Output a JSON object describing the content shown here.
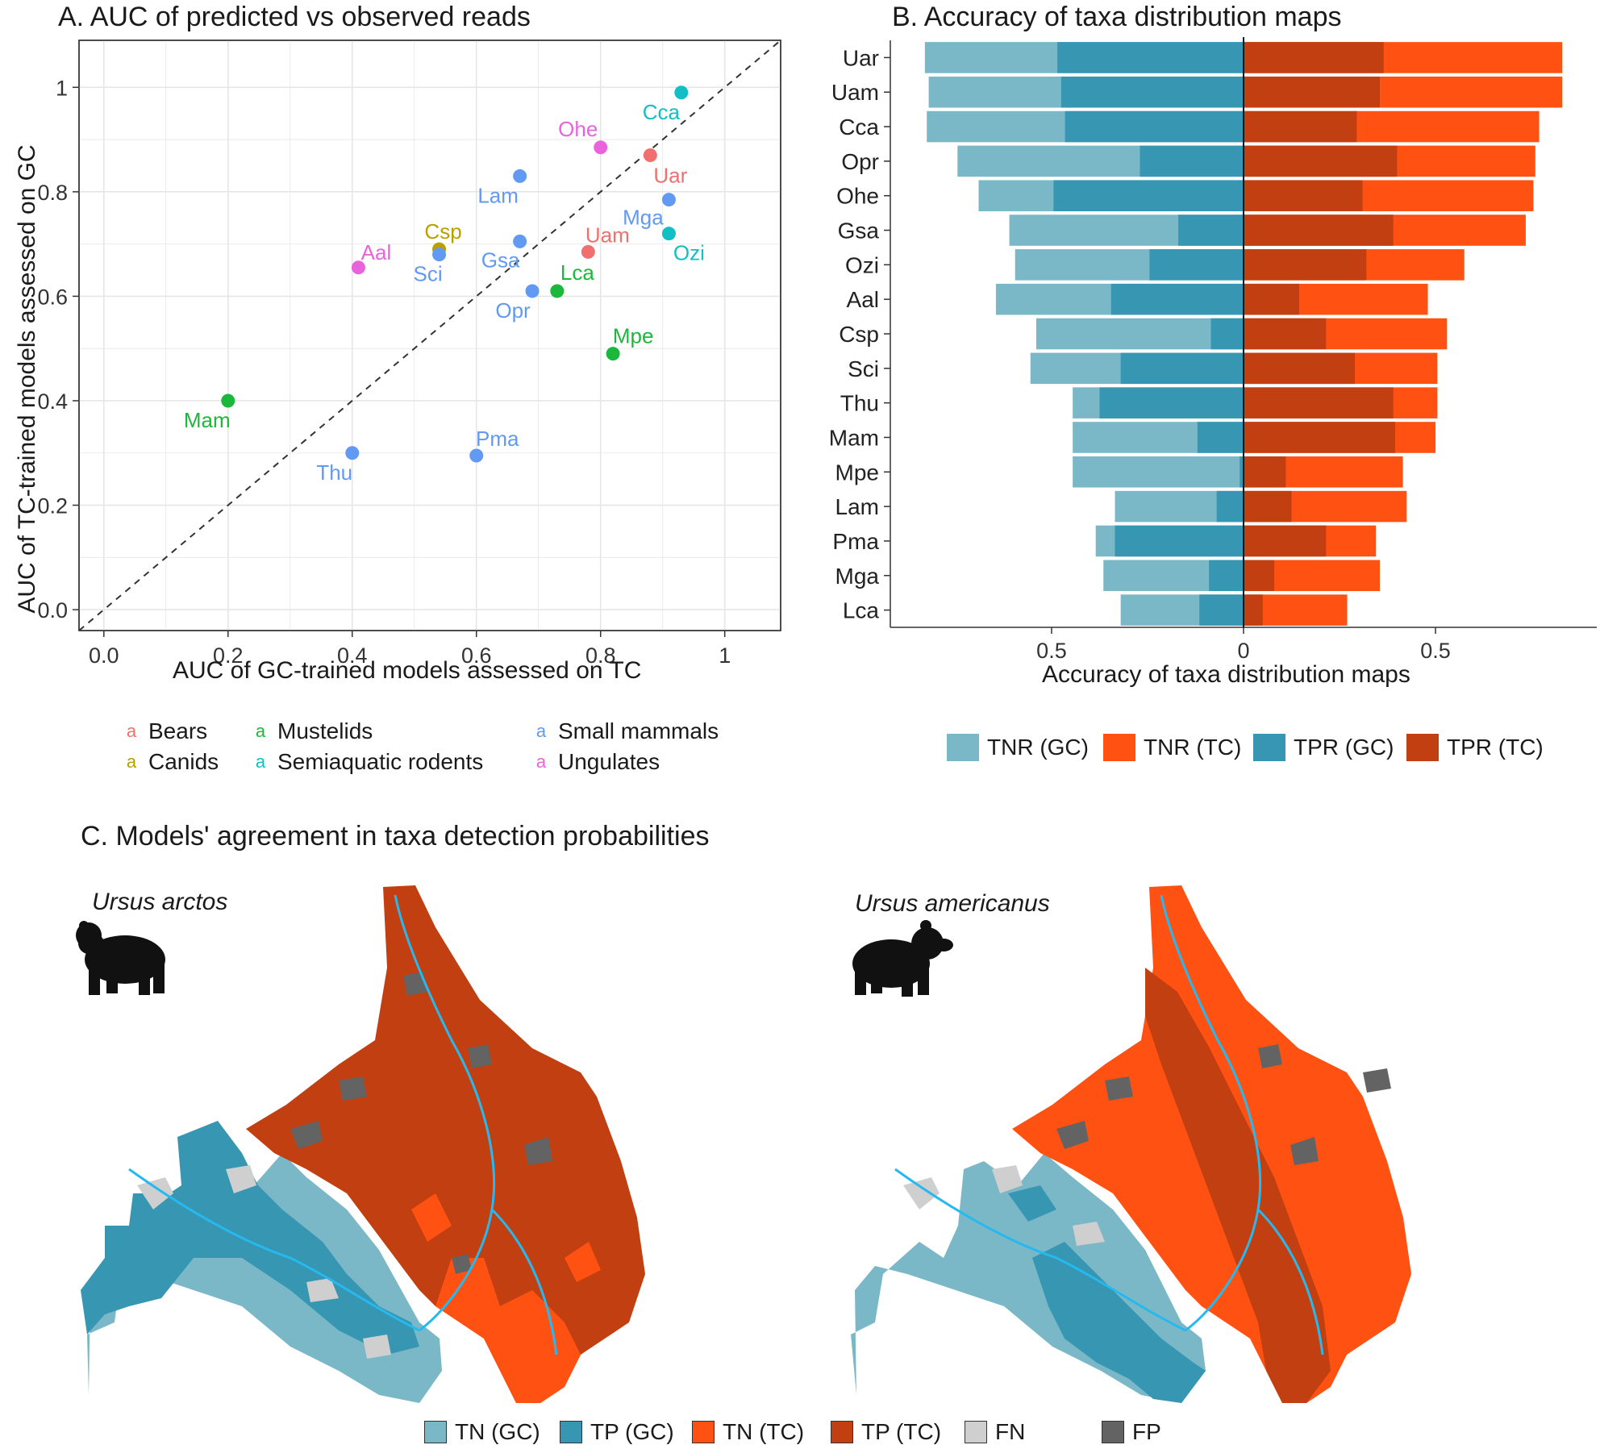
{
  "colors": {
    "bears": "#F07070",
    "canids": "#B7A000",
    "mustelids": "#1CB83C",
    "semiaquatic": "#11BFC4",
    "small_mammals": "#6299F2",
    "ungulates": "#E964DC",
    "tnr_gc": "#7AB8C8",
    "tpr_gc": "#3796B1",
    "tnr_tc": "#FF5212",
    "tpr_tc": "#C23F11",
    "fn": "#CFCFCF",
    "fp": "#636363",
    "river": "#26B9F0"
  },
  "panel_a": {
    "title": "A. AUC of predicted vs observed reads",
    "xlabel": "AUC of GC-trained models assessed on TC",
    "ylabel": "AUC of TC-trained models assessed on GC"
  },
  "panel_b": {
    "title": "B. Accuracy of taxa distribution maps",
    "xlabel": "Accuracy of taxa distribution maps"
  },
  "panel_c": {
    "title": "C. Models' agreement in taxa detection probabilities",
    "map1_label": "Ursus arctos",
    "map2_label": "Ursus americanus"
  },
  "legend_a": {
    "key": "a",
    "items": [
      "Bears",
      "Canids",
      "Mustelids",
      "Semiaquatic rodents",
      "Small mammals",
      "Ungulates"
    ]
  },
  "legend_b": [
    "TNR (GC)",
    "TNR (TC)",
    "TPR (GC)",
    "TPR (TC)"
  ],
  "legend_c": [
    "TN (GC)",
    "TP (GC)",
    "TN (TC)",
    "TP (TC)",
    "FN",
    "FP"
  ],
  "chart_data": [
    {
      "type": "scatter",
      "title": "A. AUC of predicted vs observed reads",
      "xlabel": "AUC of GC-trained models assessed on TC",
      "ylabel": "AUC of TC-trained models assessed on GC",
      "xlim": [
        -0.04,
        1.09
      ],
      "ylim": [
        -0.04,
        1.09
      ],
      "x_ticks": [
        "0.0",
        "0.2",
        "0.4",
        "0.6",
        "0.8",
        "1"
      ],
      "y_ticks": [
        "0.0",
        "0.2",
        "0.4",
        "0.6",
        "0.8",
        "1"
      ],
      "reference_line": "y = x (dashed)",
      "grid": true,
      "points": [
        {
          "label": "Cca",
          "group": "semiaquatic",
          "x": 0.93,
          "y": 0.99
        },
        {
          "label": "Ohe",
          "group": "ungulates",
          "x": 0.8,
          "y": 0.885
        },
        {
          "label": "Uar",
          "group": "bears",
          "x": 0.88,
          "y": 0.87
        },
        {
          "label": "Lam",
          "group": "small_mammals",
          "x": 0.67,
          "y": 0.83
        },
        {
          "label": "Mga",
          "group": "small_mammals",
          "x": 0.91,
          "y": 0.785
        },
        {
          "label": "Ozi",
          "group": "semiaquatic",
          "x": 0.91,
          "y": 0.72
        },
        {
          "label": "Csp",
          "group": "canids",
          "x": 0.54,
          "y": 0.69
        },
        {
          "label": "Sci",
          "group": "small_mammals",
          "x": 0.54,
          "y": 0.68
        },
        {
          "label": "Gsa",
          "group": "small_mammals",
          "x": 0.67,
          "y": 0.705
        },
        {
          "label": "Uam",
          "group": "bears",
          "x": 0.78,
          "y": 0.685
        },
        {
          "label": "Aal",
          "group": "ungulates",
          "x": 0.41,
          "y": 0.655
        },
        {
          "label": "Lca",
          "group": "mustelids",
          "x": 0.73,
          "y": 0.61
        },
        {
          "label": "Opr",
          "group": "small_mammals",
          "x": 0.69,
          "y": 0.61
        },
        {
          "label": "Mpe",
          "group": "mustelids",
          "x": 0.82,
          "y": 0.49
        },
        {
          "label": "Mam",
          "group": "mustelids",
          "x": 0.2,
          "y": 0.4
        },
        {
          "label": "Thu",
          "group": "small_mammals",
          "x": 0.4,
          "y": 0.3
        },
        {
          "label": "Pma",
          "group": "small_mammals",
          "x": 0.6,
          "y": 0.295
        }
      ]
    },
    {
      "type": "bar",
      "orientation": "horizontal-diverging",
      "title": "B. Accuracy of taxa distribution maps",
      "xlabel": "Accuracy of taxa distribution maps",
      "xlim": [
        -0.92,
        0.92
      ],
      "x_ticks": [
        {
          "value": -0.5,
          "label": "0.5"
        },
        {
          "value": 0,
          "label": "0"
        },
        {
          "value": 0.5,
          "label": "0.5"
        }
      ],
      "categories": [
        "Uar",
        "Uam",
        "Cca",
        "Opr",
        "Ohe",
        "Gsa",
        "Ozi",
        "Aal",
        "Csp",
        "Sci",
        "Thu",
        "Mam",
        "Mpe",
        "Lam",
        "Pma",
        "Mga",
        "Lca"
      ],
      "series": [
        {
          "name": "TNR (GC)",
          "side": "left",
          "values": [
            0.83,
            0.82,
            0.825,
            0.745,
            0.69,
            0.61,
            0.595,
            0.645,
            0.54,
            0.555,
            0.445,
            0.445,
            0.445,
            0.335,
            0.385,
            0.365,
            0.32
          ]
        },
        {
          "name": "TPR (GC)",
          "side": "left",
          "values": [
            0.485,
            0.475,
            0.465,
            0.27,
            0.495,
            0.17,
            0.245,
            0.345,
            0.085,
            0.32,
            0.375,
            0.12,
            0.01,
            0.07,
            0.335,
            0.09,
            0.115
          ]
        },
        {
          "name": "TNR (TC)",
          "side": "right",
          "values": [
            0.83,
            0.83,
            0.77,
            0.76,
            0.755,
            0.735,
            0.575,
            0.48,
            0.53,
            0.505,
            0.505,
            0.5,
            0.415,
            0.425,
            0.345,
            0.355,
            0.27
          ]
        },
        {
          "name": "TPR (TC)",
          "side": "right",
          "values": [
            0.365,
            0.355,
            0.295,
            0.4,
            0.31,
            0.39,
            0.32,
            0.145,
            0.215,
            0.29,
            0.39,
            0.395,
            0.11,
            0.125,
            0.215,
            0.08,
            0.05
          ]
        }
      ]
    }
  ]
}
